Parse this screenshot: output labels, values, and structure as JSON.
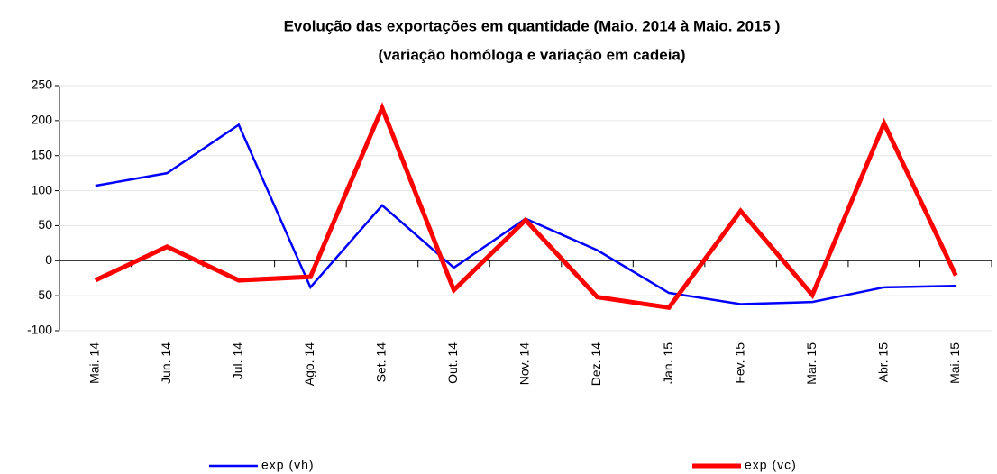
{
  "chart_data": {
    "type": "line",
    "title": "Evolução das exportações em quantidade (Maio. 2014 à  Maio. 2015 )",
    "subtitle": "(variação homóloga e variação em cadeia)",
    "categories": [
      "Mai. 14",
      "Jun. 14",
      "Jul. 14",
      "Ago. 14",
      "Set. 14",
      "Out. 14",
      "Nov. 14",
      "Dez. 14",
      "Jan. 15",
      "Fev. 15",
      "Mar. 15",
      "Abr. 15",
      "Mai. 15"
    ],
    "series": [
      {
        "name": "exp (vh)",
        "color": "#0000ff",
        "values": [
          107,
          125,
          194,
          -38,
          79,
          -10,
          60,
          15,
          -46,
          -62,
          -59,
          -38,
          -36
        ]
      },
      {
        "name": "exp (vc)",
        "color": "#ff0000",
        "values": [
          -28,
          20,
          -28,
          -23,
          218,
          -42,
          58,
          -52,
          -67,
          71,
          -49,
          196,
          -21
        ]
      }
    ],
    "ylim": [
      -100,
      250
    ],
    "yticks": [
      -100,
      -50,
      0,
      50,
      100,
      150,
      200,
      250
    ],
    "grid": true
  }
}
